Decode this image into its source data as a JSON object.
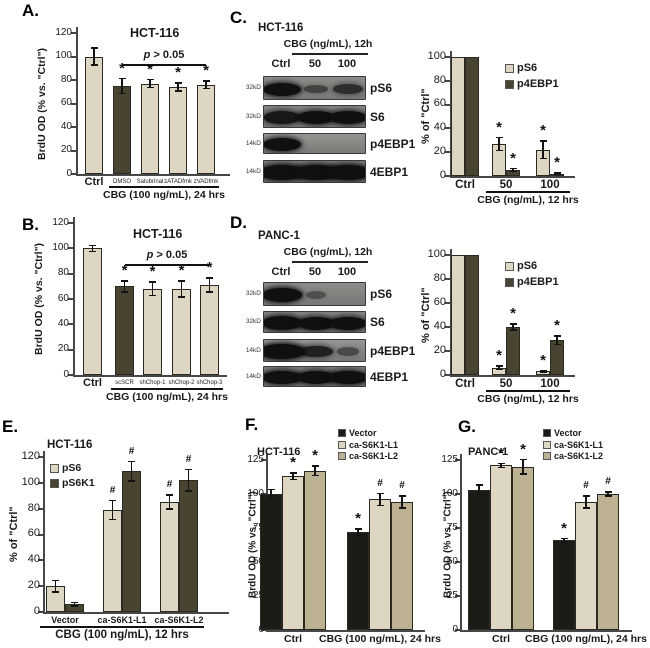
{
  "panels": {
    "A": "A.",
    "B": "B.",
    "C": "C.",
    "D": "D.",
    "E": "E.",
    "F": "F.",
    "G": "G."
  },
  "colors": {
    "cream": "#ddd6c2",
    "dark": "#494431",
    "black": "#1c1b15",
    "tan": "#bcb191",
    "axis": "#474747",
    "bar_border": "#2a2a22",
    "mark": "#111111",
    "text": "#1a1a1a",
    "blot_box_border": "#3a3a3a",
    "band": "#101010"
  },
  "chart_data": [
    {
      "id": "A",
      "type": "bar",
      "panel": "A",
      "title": "HCT-116",
      "ylabel": "BrdU OD (% vs. \"Ctrl\")",
      "ylim": [
        0,
        120
      ],
      "yticks": [
        0,
        20,
        40,
        60,
        80,
        100,
        120
      ],
      "categories": [
        "Ctrl",
        "DMSO",
        "Salubrinal",
        "zATADfmk",
        "zVADfmk"
      ],
      "values": [
        100,
        75,
        77,
        74,
        76
      ],
      "errors": [
        8,
        7,
        4,
        4,
        4
      ],
      "marks": [
        "",
        "*",
        "*",
        "*",
        "*"
      ],
      "bar_colors": [
        "cream",
        "dark",
        "cream",
        "cream",
        "cream"
      ],
      "sig": {
        "label": "p > 0.05",
        "from": 1,
        "to": 4,
        "y": 94
      },
      "group_line": {
        "from": 1,
        "to": 4,
        "label": "CBG (100 ng/mL), 24 hrs"
      }
    },
    {
      "id": "B",
      "type": "bar",
      "panel": "B",
      "title": "HCT-116",
      "ylabel": "BrdU OD (% vs. \"Ctrl\")",
      "ylim": [
        0,
        120
      ],
      "yticks": [
        0,
        20,
        40,
        60,
        80,
        100,
        120
      ],
      "categories": [
        "Ctrl",
        "scSCR",
        "shChop-1",
        "shChop-2",
        "shChop-3"
      ],
      "values": [
        100,
        70,
        68,
        68,
        71
      ],
      "errors": [
        3,
        5,
        6,
        7,
        6
      ],
      "marks": [
        "",
        "*",
        "*",
        "*",
        "*"
      ],
      "bar_colors": [
        "cream",
        "dark",
        "cream",
        "cream",
        "cream"
      ],
      "sig": {
        "label": "p > 0.05",
        "from": 1,
        "to": 4,
        "y": 88
      },
      "group_line": {
        "from": 1,
        "to": 4,
        "label": "CBG (100 ng/mL), 24 hrs"
      }
    },
    {
      "id": "C_blot",
      "type": "western_blot",
      "panel": "C",
      "cell_line": "HCT-116",
      "treatment": "CBG (ng/mL), 12h",
      "lanes": [
        "Ctrl",
        "50",
        "100"
      ],
      "rows": [
        {
          "mw": "32kD",
          "protein": "pS6",
          "bands": [
            1,
            0.4,
            0.65
          ]
        },
        {
          "mw": "32kD",
          "protein": "S6",
          "bands": [
            0.9,
            1,
            1
          ]
        },
        {
          "mw": "14kD",
          "protein": "p4EBP1",
          "bands": [
            1,
            0,
            0
          ]
        },
        {
          "mw": "14kD",
          "protein": "4EBP1",
          "bands": [
            1.3,
            1.3,
            1.3
          ]
        }
      ]
    },
    {
      "id": "C_chart",
      "type": "bar",
      "panel": "C",
      "ylabel": "% of \"Ctrl\"",
      "ylim": [
        0,
        100
      ],
      "yticks": [
        0,
        20,
        40,
        60,
        80,
        100
      ],
      "categories": [
        "Ctrl",
        "50",
        "100"
      ],
      "series": [
        {
          "name": "pS6",
          "color": "cream",
          "values": [
            100,
            27,
            22
          ],
          "errors": [
            0,
            6,
            8
          ],
          "marks": [
            "",
            "*",
            "*"
          ]
        },
        {
          "name": "p4EBP1",
          "color": "dark",
          "values": [
            100,
            5,
            2
          ],
          "errors": [
            0,
            2,
            1
          ],
          "marks": [
            "",
            "*",
            "*"
          ]
        }
      ],
      "legend_pos": "upper-right",
      "group_line": {
        "from": 1,
        "to": 2,
        "label": "CBG (ng/mL), 12 hrs"
      }
    },
    {
      "id": "D_blot",
      "type": "western_blot",
      "panel": "D",
      "cell_line": "PANC-1",
      "treatment": "CBG (ng/mL), 12h",
      "lanes": [
        "Ctrl",
        "50",
        "100"
      ],
      "rows": [
        {
          "mw": "32kD",
          "protein": "pS6",
          "bands": [
            1.1,
            0.25,
            0
          ]
        },
        {
          "mw": "32kD",
          "protein": "S6",
          "bands": [
            1.1,
            1,
            1
          ]
        },
        {
          "mw": "14kD",
          "protein": "p4EBP1",
          "bands": [
            1.35,
            0.8,
            0.35
          ]
        },
        {
          "mw": "14kD",
          "protein": "4EBP1",
          "bands": [
            1.1,
            1,
            1.1
          ]
        }
      ]
    },
    {
      "id": "D_chart",
      "type": "bar",
      "panel": "D",
      "ylabel": "% of \"Ctrl\"",
      "ylim": [
        0,
        100
      ],
      "yticks": [
        0,
        20,
        40,
        60,
        80,
        100
      ],
      "categories": [
        "Ctrl",
        "50",
        "100"
      ],
      "series": [
        {
          "name": "pS6",
          "color": "cream",
          "values": [
            100,
            6,
            3
          ],
          "errors": [
            0,
            2,
            1
          ],
          "marks": [
            "",
            "*",
            "*"
          ]
        },
        {
          "name": "p4EBP1",
          "color": "dark",
          "values": [
            100,
            40,
            29
          ],
          "errors": [
            0,
            3,
            4
          ],
          "marks": [
            "",
            "*",
            "*"
          ]
        }
      ],
      "legend_pos": "upper-right",
      "group_line": {
        "from": 1,
        "to": 2,
        "label": "CBG (ng/mL), 12 hrs"
      }
    },
    {
      "id": "E",
      "type": "bar",
      "panel": "E",
      "title": "HCT-116",
      "ylabel": "% of \"Ctrl\"",
      "ylim": [
        0,
        120
      ],
      "yticks": [
        0,
        20,
        40,
        60,
        80,
        100,
        120
      ],
      "categories": [
        "Vector",
        "ca-S6K1-L1",
        "ca-S6K1-L2"
      ],
      "series": [
        {
          "name": "pS6",
          "color": "cream",
          "values": [
            20,
            79,
            85
          ],
          "errors": [
            5,
            8,
            6
          ],
          "marks": [
            "",
            "#",
            "#"
          ]
        },
        {
          "name": "pS6K1",
          "color": "dark",
          "values": [
            6,
            109,
            102
          ],
          "errors": [
            2,
            8,
            9
          ],
          "marks": [
            "",
            "#",
            "#"
          ]
        }
      ],
      "legend_pos": "upper-left",
      "group_line": {
        "from": 0,
        "to": 2,
        "label": "CBG (100 ng/mL), 12 hrs"
      }
    },
    {
      "id": "F",
      "type": "bar",
      "panel": "F",
      "title": "HCT-116",
      "ylabel": "BrdU OD (% vs. \"Ctrl\")",
      "ylim": [
        0,
        125
      ],
      "yticks": [
        0,
        25,
        50,
        75,
        100,
        125
      ],
      "categories": [
        "Ctrl",
        "CBG (100 ng/mL), 24 hrs"
      ],
      "series": [
        {
          "name": "Vector",
          "color": "black",
          "values": [
            100,
            72
          ],
          "errors": [
            4,
            3
          ],
          "marks": [
            "",
            "*"
          ]
        },
        {
          "name": "ca-S6K1-L1",
          "color": "cream",
          "values": [
            113,
            96
          ],
          "errors": [
            3,
            5
          ],
          "marks": [
            "*",
            "#"
          ]
        },
        {
          "name": "ca-S6K1-L2",
          "color": "tan",
          "values": [
            117,
            94
          ],
          "errors": [
            4,
            5
          ],
          "marks": [
            "*",
            "#"
          ]
        }
      ],
      "legend_pos": "upper-right"
    },
    {
      "id": "G",
      "type": "bar",
      "panel": "G",
      "title": "PANC-1",
      "ylabel": "BrdU OD (% vs. \"Ctrl\")",
      "ylim": [
        0,
        125
      ],
      "yticks": [
        0,
        25,
        50,
        75,
        100,
        125
      ],
      "categories": [
        "Ctrl",
        "CBG (100 ng/mL), 24 hrs"
      ],
      "series": [
        {
          "name": "Vector",
          "color": "black",
          "values": [
            103,
            66
          ],
          "errors": [
            4,
            2
          ],
          "marks": [
            "",
            "*"
          ]
        },
        {
          "name": "ca-S6K1-L1",
          "color": "cream",
          "values": [
            121,
            94
          ],
          "errors": [
            2,
            5
          ],
          "marks": [
            "*",
            "#"
          ]
        },
        {
          "name": "ca-S6K1-L2",
          "color": "tan",
          "values": [
            120,
            100
          ],
          "errors": [
            6,
            2
          ],
          "marks": [
            "*",
            "#"
          ]
        }
      ],
      "legend_pos": "upper-right"
    }
  ]
}
